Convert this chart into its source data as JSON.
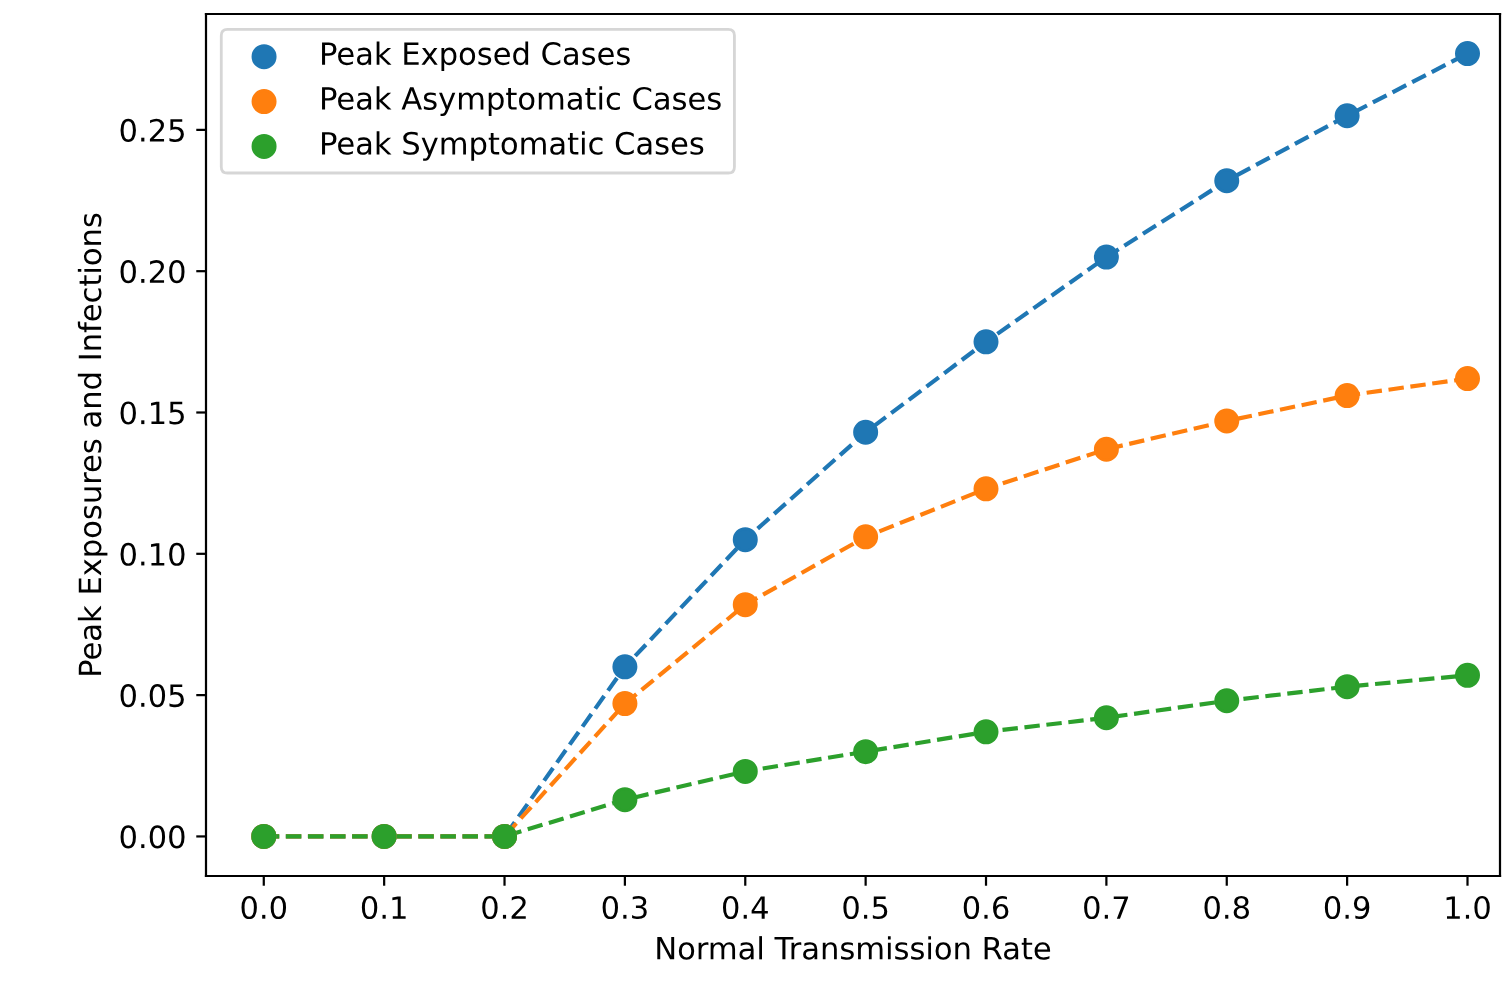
{
  "chart_data": {
    "type": "line",
    "xlabel": "Normal Transmission Rate",
    "ylabel": "Peak Exposures and Infections",
    "x": [
      0.0,
      0.1,
      0.2,
      0.3,
      0.4,
      0.5,
      0.6,
      0.7,
      0.8,
      0.9,
      1.0
    ],
    "series": [
      {
        "name": "Peak Exposed Cases",
        "color": "#1f77b4",
        "values": [
          0,
          0,
          0,
          0.06,
          0.105,
          0.143,
          0.175,
          0.205,
          0.232,
          0.255,
          0.277
        ]
      },
      {
        "name": "Peak Asymptomatic Cases",
        "color": "#ff7f0e",
        "values": [
          0,
          0,
          0,
          0.047,
          0.082,
          0.106,
          0.123,
          0.137,
          0.147,
          0.156,
          0.162
        ]
      },
      {
        "name": "Peak Symptomatic Cases",
        "color": "#2ca02c",
        "values": [
          0,
          0,
          0,
          0.013,
          0.023,
          0.03,
          0.037,
          0.042,
          0.048,
          0.053,
          0.057
        ]
      }
    ],
    "xlim": [
      -0.048,
      1.027
    ],
    "ylim": [
      -0.014,
      0.291
    ],
    "xticks": [
      {
        "value": 0.0,
        "label": "0.0"
      },
      0.1,
      0.2,
      0.3,
      0.4,
      0.5,
      0.6,
      0.7,
      0.8,
      0.9,
      {
        "value": 1.0,
        "label": "1.0"
      }
    ],
    "yticks": [
      {
        "value": 0,
        "label": "0.00"
      },
      0.05,
      {
        "value": 0.1,
        "label": "0.10"
      },
      0.15,
      {
        "value": 0.2,
        "label": "0.20"
      },
      0.25
    ],
    "grid": false,
    "legend": "top left",
    "marker": "circle",
    "line_style": "dashed"
  }
}
